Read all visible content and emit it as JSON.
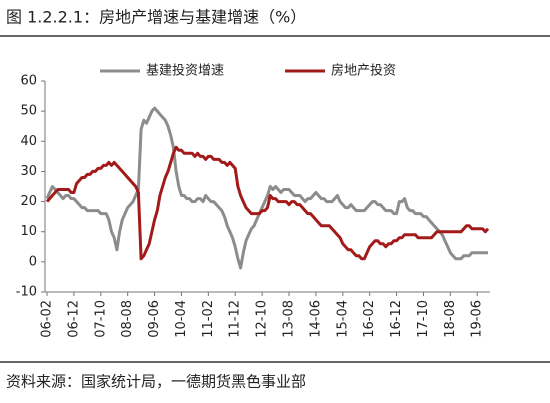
{
  "chart_data": {
    "type": "line",
    "title": "图 1.2.2.1：房地产增速与基建增速（%）",
    "source": "资料来源：国家统计局，一德期货黑色事业部",
    "categories": [
      "06-02",
      null,
      null,
      null,
      null,
      null,
      null,
      null,
      null,
      null,
      "06-12",
      null,
      null,
      null,
      null,
      null,
      null,
      null,
      null,
      null,
      "07-10",
      null,
      null,
      null,
      null,
      null,
      null,
      null,
      null,
      null,
      "08-08",
      null,
      null,
      null,
      null,
      null,
      null,
      null,
      null,
      null,
      "09-06",
      null,
      null,
      null,
      null,
      null,
      null,
      null,
      null,
      null,
      "10-04",
      null,
      null,
      null,
      null,
      null,
      null,
      null,
      null,
      null,
      "11-02",
      null,
      null,
      null,
      null,
      null,
      null,
      null,
      null,
      null,
      "11-12",
      null,
      null,
      null,
      null,
      null,
      null,
      null,
      null,
      null,
      "12-10",
      null,
      null,
      null,
      null,
      null,
      null,
      null,
      null,
      null,
      "13-08",
      null,
      null,
      null,
      null,
      null,
      null,
      null,
      null,
      null,
      "14-06",
      null,
      null,
      null,
      null,
      null,
      null,
      null,
      null,
      null,
      "15-04",
      null,
      null,
      null,
      null,
      null,
      null,
      null,
      null,
      null,
      "16-02",
      null,
      null,
      null,
      null,
      null,
      null,
      null,
      null,
      null,
      "16-12",
      null,
      null,
      null,
      null,
      null,
      null,
      null,
      null,
      null,
      "17-10",
      null,
      null,
      null,
      null,
      null,
      null,
      null,
      null,
      null,
      "18-08",
      null,
      null,
      null,
      null,
      null,
      null,
      null,
      null,
      null,
      "19-06",
      null,
      null,
      null,
      null
    ],
    "series": [
      {
        "name": "基建投资增速",
        "color": "#8c8c8c",
        "values": [
          21,
          23,
          25,
          24,
          23,
          22,
          21,
          22,
          22,
          21,
          21,
          20,
          19,
          18,
          18,
          17,
          17,
          17,
          17,
          17,
          16,
          16,
          16,
          14,
          10,
          8,
          4,
          10,
          14,
          16,
          18,
          19,
          20,
          22,
          24,
          44,
          47,
          46,
          48,
          50,
          51,
          50,
          49,
          48,
          47,
          45,
          42,
          38,
          30,
          25,
          22,
          22,
          21,
          21,
          20,
          20,
          21,
          21,
          20,
          22,
          21,
          20,
          20,
          19,
          18,
          17,
          15,
          12,
          10,
          8,
          5,
          1,
          -2,
          3,
          7,
          9,
          11,
          12,
          14,
          16,
          18,
          20,
          22,
          25,
          24,
          25,
          24,
          23,
          24,
          24,
          24,
          23,
          22,
          22,
          22,
          21,
          20,
          21,
          21,
          22,
          23,
          22,
          21,
          21,
          20,
          20,
          20,
          21,
          22,
          20,
          19,
          18,
          18,
          19,
          18,
          17,
          17,
          17,
          17,
          18,
          19,
          20,
          20,
          19,
          19,
          18,
          17,
          17,
          17,
          16,
          16,
          20,
          20,
          21,
          18,
          17,
          17,
          16,
          16,
          16,
          15,
          15,
          14,
          13,
          12,
          11,
          10,
          9,
          7,
          5,
          3,
          2,
          1,
          1,
          1,
          2,
          2,
          2,
          3,
          3,
          3,
          3,
          3,
          3,
          3
        ]
      },
      {
        "name": "房地产投资",
        "color": "#a31a1a",
        "values": [
          20,
          21,
          22,
          23,
          24,
          24,
          24,
          24,
          24,
          23,
          23,
          26,
          27,
          28,
          28,
          29,
          29,
          30,
          30,
          31,
          31,
          32,
          32,
          33,
          32,
          33,
          32,
          31,
          30,
          29,
          28,
          27,
          26,
          25,
          23,
          1,
          2,
          4,
          6,
          10,
          14,
          17,
          22,
          25,
          28,
          30,
          33,
          36,
          38,
          37,
          37,
          36,
          36,
          36,
          36,
          35,
          36,
          35,
          35,
          34,
          35,
          35,
          34,
          34,
          34,
          33,
          33,
          32,
          33,
          32,
          31,
          25,
          22,
          20,
          18,
          17,
          16,
          16,
          16,
          16,
          17,
          17,
          18,
          22,
          21,
          21,
          20,
          20,
          20,
          20,
          19,
          20,
          20,
          19,
          19,
          18,
          17,
          16,
          16,
          15,
          14,
          13,
          12,
          12,
          12,
          12,
          11,
          10,
          9,
          8,
          6,
          5,
          4,
          4,
          3,
          2,
          2,
          1,
          1,
          3,
          5,
          6,
          7,
          7,
          6,
          6,
          5,
          6,
          6,
          7,
          7,
          8,
          8,
          9,
          9,
          9,
          9,
          9,
          8,
          8,
          8,
          8,
          8,
          8,
          9,
          10,
          10,
          10,
          10,
          10,
          10,
          10,
          10,
          10,
          10,
          11,
          12,
          12,
          11,
          11,
          11,
          11,
          11,
          10,
          11
        ]
      }
    ],
    "ylim": [
      -10,
      60
    ],
    "yticks": [
      -10,
      0,
      10,
      20,
      30,
      40,
      50,
      60
    ],
    "grid": false
  }
}
